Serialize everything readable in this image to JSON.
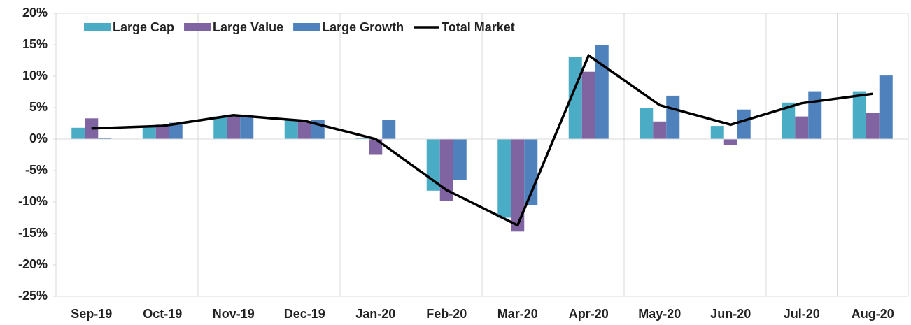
{
  "chart_data": {
    "type": "bar",
    "categories": [
      "Sep-19",
      "Oct-19",
      "Nov-19",
      "Dec-19",
      "Jan-20",
      "Feb-20",
      "Mar-20",
      "Apr-20",
      "May-20",
      "Jun-20",
      "Jul-20",
      "Aug-20"
    ],
    "series": [
      {
        "name": "Large Cap",
        "color": "#4bacc6",
        "values": [
          1.8,
          2.1,
          3.6,
          3.0,
          0.2,
          -8.2,
          -12.5,
          13.1,
          5.0,
          2.1,
          5.8,
          7.6
        ]
      },
      {
        "name": "Large Value",
        "color": "#8064a2",
        "values": [
          3.3,
          2.3,
          3.6,
          2.8,
          -2.5,
          -9.8,
          -14.7,
          10.7,
          2.8,
          -1.0,
          3.6,
          4.2
        ]
      },
      {
        "name": "Large Growth",
        "color": "#4f81bd",
        "values": [
          0.2,
          2.6,
          3.8,
          3.0,
          3.0,
          -6.5,
          -10.5,
          15.0,
          6.9,
          4.7,
          7.6,
          10.1
        ]
      },
      {
        "name": "Total Market",
        "color": "#000000",
        "type": "line",
        "values": [
          1.7,
          2.1,
          3.8,
          2.9,
          0.0,
          -8.1,
          -13.7,
          13.3,
          5.4,
          2.3,
          5.7,
          7.2
        ]
      }
    ],
    "ylim": [
      -25,
      20
    ],
    "yticks": [
      {
        "value": -25,
        "label": "-25%"
      },
      {
        "value": -20,
        "label": "-20%"
      },
      {
        "value": -15,
        "label": "-15%"
      },
      {
        "value": -10,
        "label": "-10%"
      },
      {
        "value": -5,
        "label": "-5%"
      },
      {
        "value": 0,
        "label": "0%"
      },
      {
        "value": 5,
        "label": "5%"
      },
      {
        "value": 10,
        "label": "10%"
      },
      {
        "value": 15,
        "label": "15%"
      },
      {
        "value": 20,
        "label": "20%"
      }
    ],
    "legend": "top-left"
  }
}
